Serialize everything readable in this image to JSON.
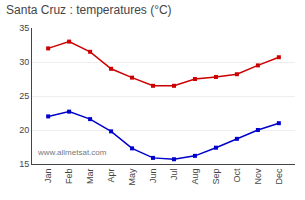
{
  "chart_data": {
    "type": "line",
    "title": "Santa Cruz : temperatures (°C)",
    "categories": [
      "Jan",
      "Feb",
      "Mar",
      "Apr",
      "May",
      "Jun",
      "Jul",
      "Aug",
      "Sep",
      "Oct",
      "Nov",
      "Dec"
    ],
    "series": [
      {
        "color": "#cc0000",
        "values": [
          32.0,
          33.0,
          31.5,
          29.0,
          27.7,
          26.5,
          26.5,
          27.5,
          27.8,
          28.2,
          29.5,
          30.7
        ]
      },
      {
        "color": "#0000cc",
        "values": [
          22.0,
          22.7,
          21.6,
          19.8,
          17.3,
          15.9,
          15.7,
          16.2,
          17.4,
          18.7,
          20.0,
          21.0
        ]
      }
    ],
    "ylim": [
      15,
      35
    ],
    "yticks": [
      15,
      20,
      25,
      30,
      35
    ],
    "grid": true,
    "marker": "square",
    "annotations": [
      "www.allmetsat.com"
    ]
  }
}
